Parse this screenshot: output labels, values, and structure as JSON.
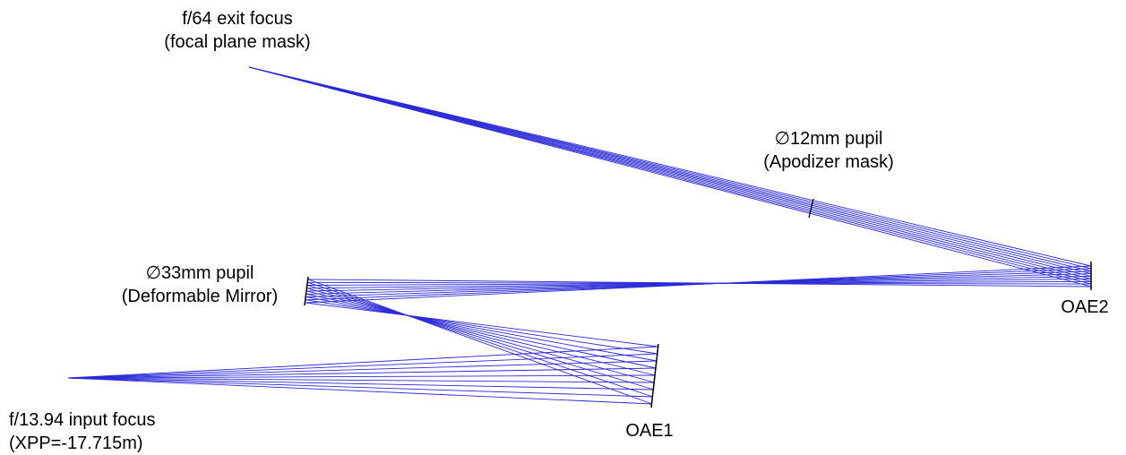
{
  "labels": {
    "exit_focus": {
      "line1": "f/64 exit focus",
      "line2": "(focal plane mask)"
    },
    "apodizer": {
      "line1": "∅12mm pupil",
      "line2": "(Apodizer mask)"
    },
    "dm": {
      "line1": "∅33mm pupil",
      "line2": "(Deformable Mirror)"
    },
    "input_focus": {
      "line1": "f/13.94 input focus",
      "line2": "(XPP=-17.715m)"
    },
    "oae1": "OAE1",
    "oae2": "OAE2"
  },
  "colors": {
    "ray": "#2a2ad8",
    "element": "#000000",
    "text": "#000000"
  }
}
